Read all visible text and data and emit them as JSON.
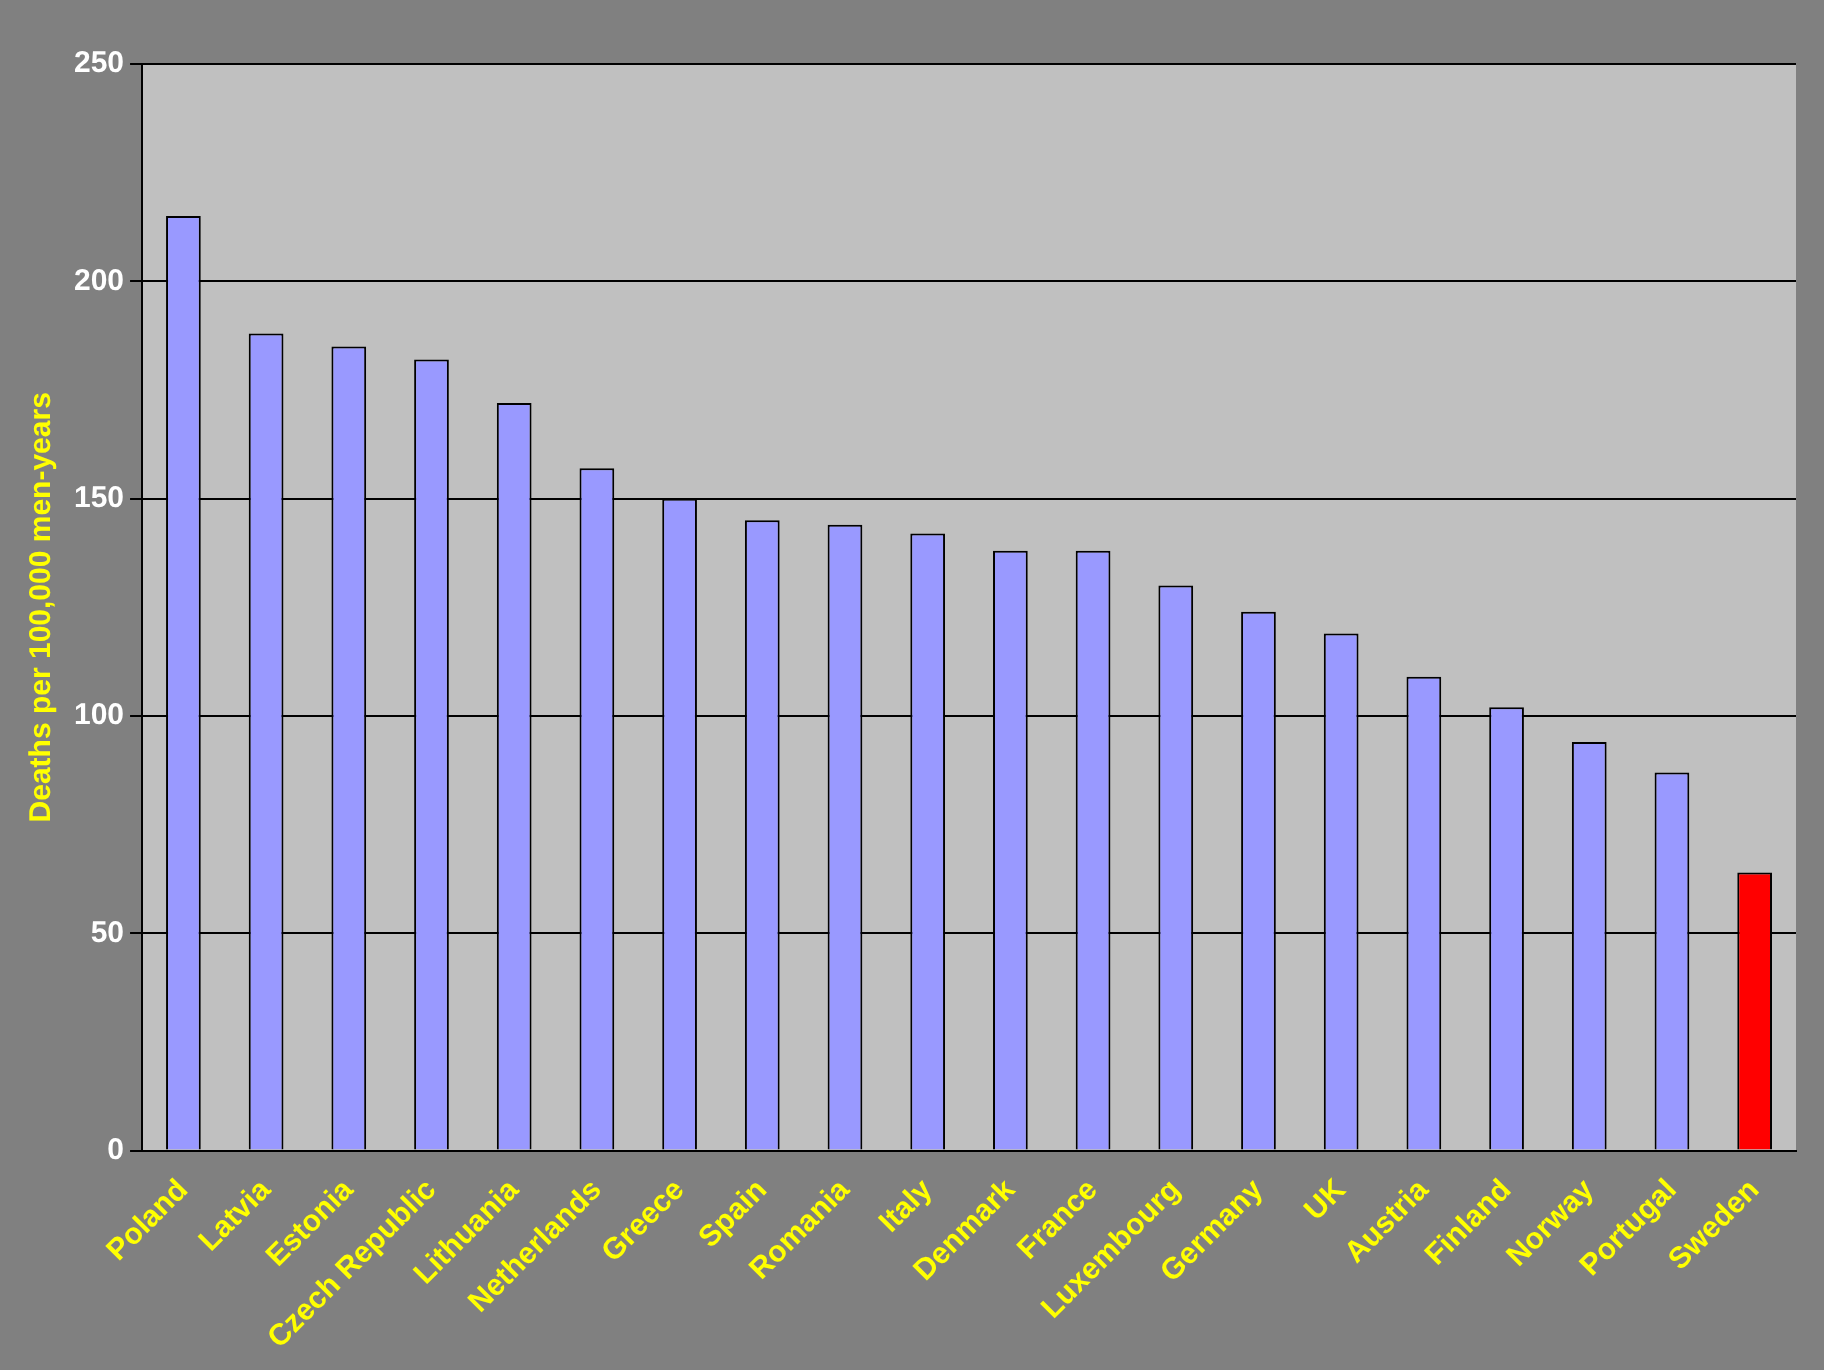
{
  "chart_data": {
    "type": "bar",
    "ylabel": "Deaths per 100,000 men-years",
    "categories": [
      "Poland",
      "Latvia",
      "Estonia",
      "Czech Republic",
      "Lithuania",
      "Netherlands",
      "Greece",
      "Spain",
      "Romania",
      "Italy",
      "Denmark",
      "France",
      "Luxembourg",
      "Germany",
      "UK",
      "Austria",
      "Finland",
      "Norway",
      "Portugal",
      "Sweden"
    ],
    "values": [
      215,
      188,
      185,
      182,
      172,
      157,
      150,
      145,
      144,
      142,
      138,
      138,
      130,
      124,
      119,
      109,
      102,
      94,
      87,
      64
    ],
    "colors": [
      "#9999ff",
      "#9999ff",
      "#9999ff",
      "#9999ff",
      "#9999ff",
      "#9999ff",
      "#9999ff",
      "#9999ff",
      "#9999ff",
      "#9999ff",
      "#9999ff",
      "#9999ff",
      "#9999ff",
      "#9999ff",
      "#9999ff",
      "#9999ff",
      "#9999ff",
      "#9999ff",
      "#9999ff",
      "#ff0000"
    ],
    "ylim": [
      0,
      250
    ],
    "yticks": [
      0,
      50,
      100,
      150,
      200,
      250
    ],
    "grid": "y",
    "legend": false
  }
}
